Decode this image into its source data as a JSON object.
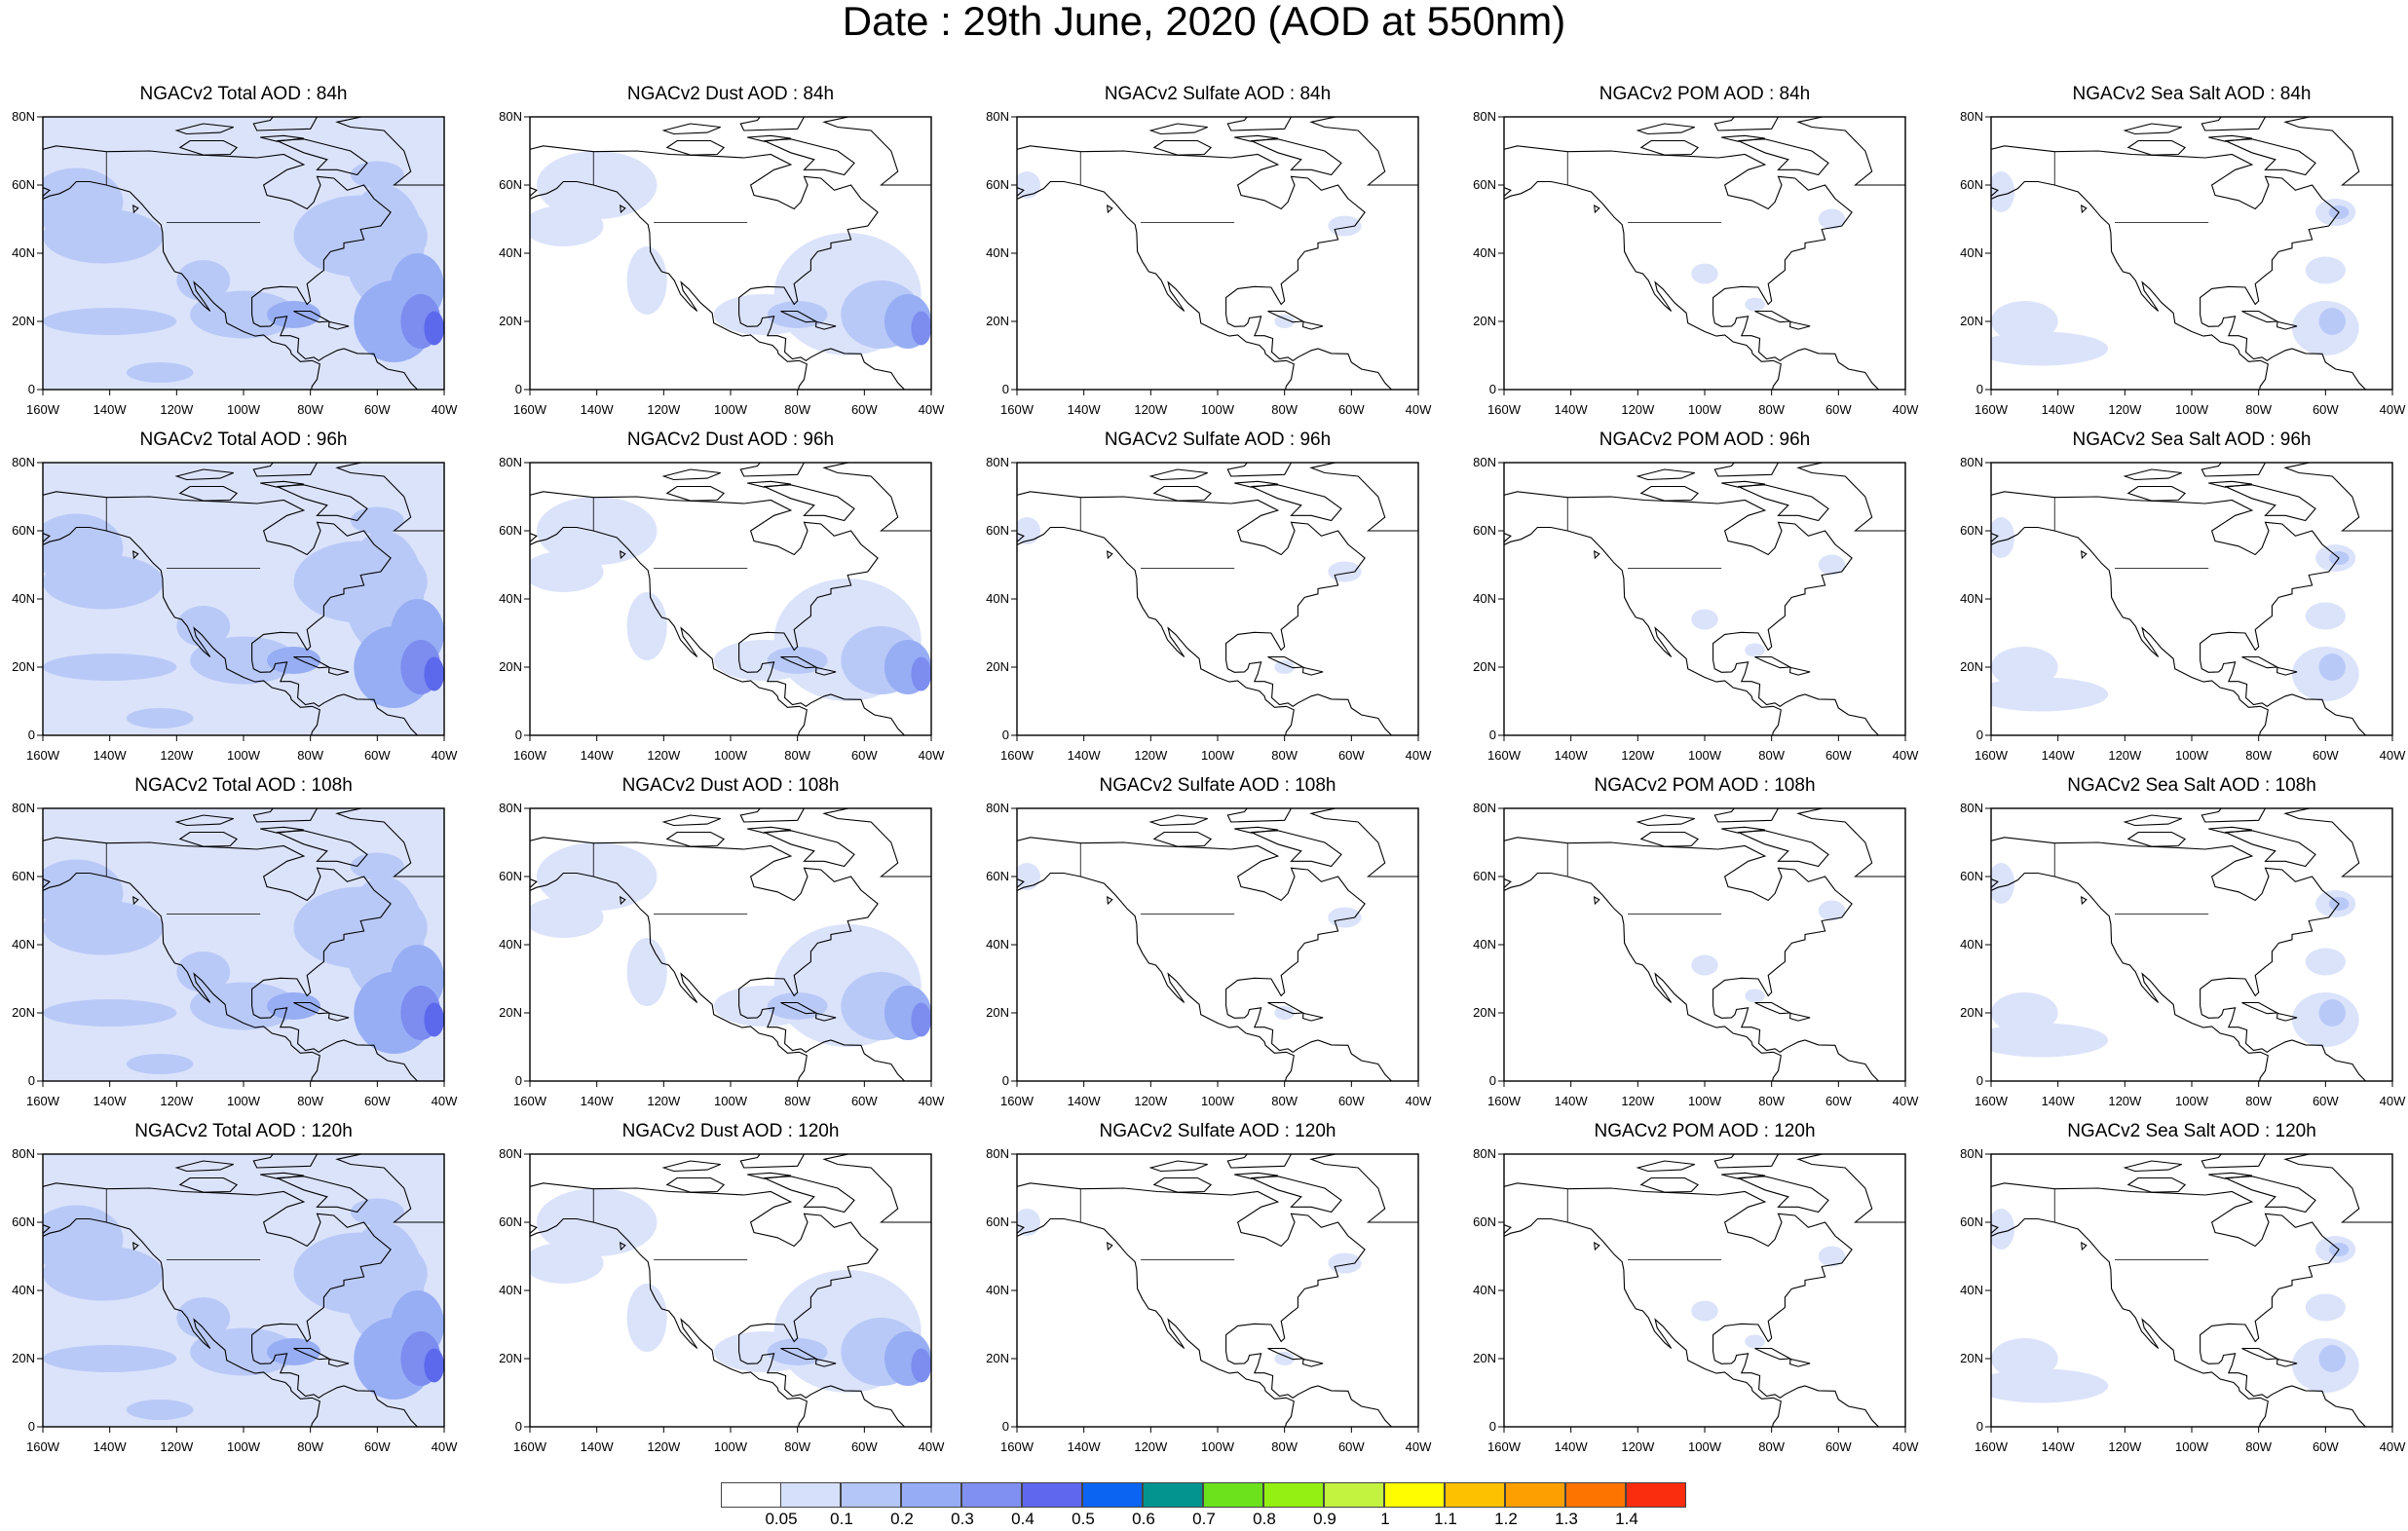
{
  "page": {
    "title": "Date : 29th June, 2020 (AOD at 550nm)"
  },
  "axes": {
    "lat_ticks": [
      "80N",
      "60N",
      "40N",
      "20N",
      "0"
    ],
    "lon_ticks": [
      "160W",
      "140W",
      "120W",
      "100W",
      "80W",
      "60W",
      "40W"
    ],
    "lat_range": [
      0,
      80
    ],
    "lon_range": [
      -160,
      -40
    ]
  },
  "species": [
    {
      "key": "total",
      "label": "Total AOD"
    },
    {
      "key": "dust",
      "label": "Dust AOD"
    },
    {
      "key": "sulfate",
      "label": "Sulfate AOD"
    },
    {
      "key": "pom",
      "label": "POM AOD"
    },
    {
      "key": "seasalt",
      "label": "Sea Salt AOD"
    }
  ],
  "panels": [
    {
      "id": "r1c1",
      "title": "NGACv2 Total AOD : 84h",
      "species": "total",
      "forecast_hour": "84h"
    },
    {
      "id": "r1c2",
      "title": "NGACv2 Dust AOD : 84h",
      "species": "dust",
      "forecast_hour": "84h"
    },
    {
      "id": "r1c3",
      "title": "NGACv2 Sulfate AOD : 84h",
      "species": "sulfate",
      "forecast_hour": "84h"
    },
    {
      "id": "r1c4",
      "title": "NGACv2 POM AOD : 84h",
      "species": "pom",
      "forecast_hour": "84h"
    },
    {
      "id": "r1c5",
      "title": "NGACv2 Sea Salt AOD : 84h",
      "species": "seasalt",
      "forecast_hour": "84h"
    },
    {
      "id": "r2c1",
      "title": "NGACv2 Total AOD : 96h",
      "species": "total",
      "forecast_hour": "96h"
    },
    {
      "id": "r2c2",
      "title": "NGACv2 Dust AOD : 96h",
      "species": "dust",
      "forecast_hour": "96h"
    },
    {
      "id": "r2c3",
      "title": "NGACv2 Sulfate AOD : 96h",
      "species": "sulfate",
      "forecast_hour": "96h"
    },
    {
      "id": "r2c4",
      "title": "NGACv2 POM AOD : 96h",
      "species": "pom",
      "forecast_hour": "96h"
    },
    {
      "id": "r2c5",
      "title": "NGACv2 Sea Salt AOD : 96h",
      "species": "seasalt",
      "forecast_hour": "96h"
    },
    {
      "id": "r3c1",
      "title": "NGACv2 Total AOD : 108h",
      "species": "total",
      "forecast_hour": "108h"
    },
    {
      "id": "r3c2",
      "title": "NGACv2 Dust AOD : 108h",
      "species": "dust",
      "forecast_hour": "108h"
    },
    {
      "id": "r3c3",
      "title": "NGACv2 Sulfate AOD : 108h",
      "species": "sulfate",
      "forecast_hour": "108h"
    },
    {
      "id": "r3c4",
      "title": "NGACv2 POM AOD : 108h",
      "species": "pom",
      "forecast_hour": "108h"
    },
    {
      "id": "r3c5",
      "title": "NGACv2 Sea Salt AOD : 108h",
      "species": "seasalt",
      "forecast_hour": "108h"
    },
    {
      "id": "r4c1",
      "title": "NGACv2 Total AOD : 120h",
      "species": "total",
      "forecast_hour": "120h"
    },
    {
      "id": "r4c2",
      "title": "NGACv2 Dust AOD : 120h",
      "species": "dust",
      "forecast_hour": "120h"
    },
    {
      "id": "r4c3",
      "title": "NGACv2 Sulfate AOD : 120h",
      "species": "sulfate",
      "forecast_hour": "120h"
    },
    {
      "id": "r4c4",
      "title": "NGACv2 POM AOD : 120h",
      "species": "pom",
      "forecast_hour": "120h"
    },
    {
      "id": "r4c5",
      "title": "NGACv2 Sea Salt  AOD : 120h",
      "species": "seasalt",
      "forecast_hour": "120h"
    }
  ],
  "colorbar": {
    "boundaries": [
      "0.05",
      "0.1",
      "0.2",
      "0.3",
      "0.4",
      "0.5",
      "0.6",
      "0.7",
      "0.8",
      "0.9",
      "1",
      "1.1",
      "1.2",
      "1.3",
      "1.4"
    ],
    "colors": [
      "#ffffff",
      "#d6e0fb",
      "#b4c5f7",
      "#96acf5",
      "#8090f2",
      "#5f67ef",
      "#0b64f2",
      "#04948f",
      "#6be21c",
      "#94ef12",
      "#c3f33f",
      "#fffd00",
      "#fec100",
      "#fe9f00",
      "#fd7500",
      "#fb2d0f"
    ]
  },
  "palette": {
    "level_1": "#dbe3fb",
    "level_2": "#b9c9f7",
    "level_3": "#97aef4",
    "level_4": "#7c8cef",
    "level_5": "#5d69ec",
    "coastline": "#000000"
  }
}
